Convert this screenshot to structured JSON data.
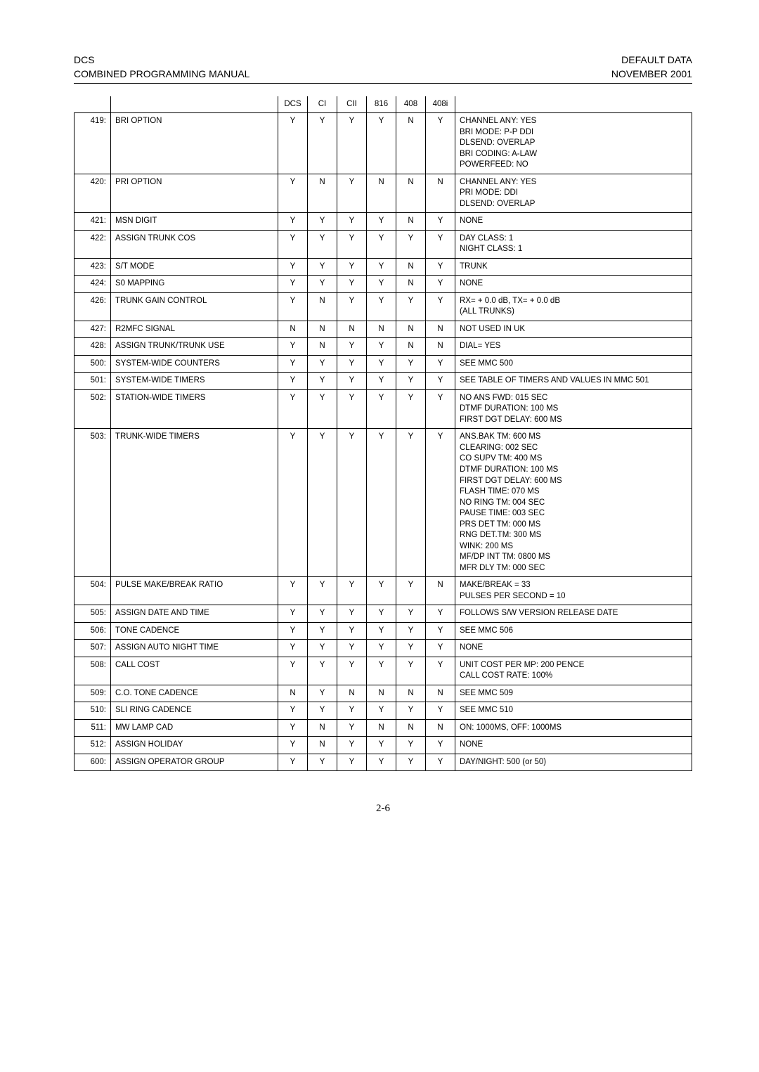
{
  "header": {
    "left_line1": "DCS",
    "left_line2": "COMBINED PROGRAMMING MANUAL",
    "right_line1": "DEFAULT DATA",
    "right_line2": "NOVEMBER 2001"
  },
  "page_number": "2-6",
  "columns": {
    "dcs": "DCS",
    "ci": "CI",
    "cii": "CII",
    "c816": "816",
    "c408": "408",
    "c408i": "408i"
  },
  "rows": [
    {
      "id": "419:",
      "name": "BRI OPTION",
      "dcs": "Y",
      "ci": "Y",
      "cii": "Y",
      "c816": "Y",
      "c408": "N",
      "c408i": "Y",
      "notes": "CHANNEL ANY: YES\nBRI MODE: P-P DDI\nDLSEND: OVERLAP\nBRI CODING: A-LAW\nPOWERFEED: NO"
    },
    {
      "id": "420:",
      "name": "PRI OPTION",
      "dcs": "Y",
      "ci": "N",
      "cii": "Y",
      "c816": "N",
      "c408": "N",
      "c408i": "N",
      "notes": "CHANNEL ANY: YES\nPRI MODE: DDI\nDLSEND: OVERLAP"
    },
    {
      "id": "421:",
      "name": "MSN DIGIT",
      "dcs": "Y",
      "ci": "Y",
      "cii": "Y",
      "c816": "Y",
      "c408": "N",
      "c408i": "Y",
      "notes": "NONE"
    },
    {
      "id": "422:",
      "name": "ASSIGN TRUNK COS",
      "dcs": "Y",
      "ci": "Y",
      "cii": "Y",
      "c816": "Y",
      "c408": "Y",
      "c408i": "Y",
      "notes": "DAY CLASS: 1\nNIGHT CLASS: 1"
    },
    {
      "id": "423:",
      "name": "S/T MODE",
      "dcs": "Y",
      "ci": "Y",
      "cii": "Y",
      "c816": "Y",
      "c408": "N",
      "c408i": "Y",
      "notes": "TRUNK"
    },
    {
      "id": "424:",
      "name": "S0 MAPPING",
      "dcs": "Y",
      "ci": "Y",
      "cii": "Y",
      "c816": "Y",
      "c408": "N",
      "c408i": "Y",
      "notes": "NONE"
    },
    {
      "id": "426:",
      "name": "TRUNK GAIN CONTROL",
      "dcs": "Y",
      "ci": "N",
      "cii": "Y",
      "c816": "Y",
      "c408": "Y",
      "c408i": "Y",
      "notes": "RX= + 0.0 dB, TX= + 0.0 dB\n(ALL TRUNKS)"
    },
    {
      "id": "427:",
      "name": "R2MFC SIGNAL",
      "dcs": "N",
      "ci": "N",
      "cii": "N",
      "c816": "N",
      "c408": "N",
      "c408i": "N",
      "notes": "NOT USED IN UK"
    },
    {
      "id": "428:",
      "name": "ASSIGN TRUNK/TRUNK USE",
      "dcs": "Y",
      "ci": "N",
      "cii": "Y",
      "c816": "Y",
      "c408": "N",
      "c408i": "N",
      "notes": "DIAL= YES"
    },
    {
      "id": "500:",
      "name": "SYSTEM-WIDE COUNTERS",
      "dcs": "Y",
      "ci": "Y",
      "cii": "Y",
      "c816": "Y",
      "c408": "Y",
      "c408i": "Y",
      "notes": "SEE MMC 500"
    },
    {
      "id": "501:",
      "name": "SYSTEM-WIDE TIMERS",
      "dcs": "Y",
      "ci": "Y",
      "cii": "Y",
      "c816": "Y",
      "c408": "Y",
      "c408i": "Y",
      "notes": "SEE TABLE OF TIMERS AND VALUES IN MMC 501"
    },
    {
      "id": "502:",
      "name": "STATION-WIDE TIMERS",
      "dcs": "Y",
      "ci": "Y",
      "cii": "Y",
      "c816": "Y",
      "c408": "Y",
      "c408i": "Y",
      "notes": "NO ANS FWD: 015 SEC\nDTMF DURATION: 100 MS\nFIRST DGT DELAY: 600 MS"
    },
    {
      "id": "503:",
      "name": "TRUNK-WIDE TIMERS",
      "dcs": "Y",
      "ci": "Y",
      "cii": "Y",
      "c816": "Y",
      "c408": "Y",
      "c408i": "Y",
      "notes": "ANS.BAK TM: 600 MS\nCLEARING: 002 SEC\nCO SUPV TM: 400 MS\nDTMF DURATION: 100 MS\nFIRST DGT DELAY: 600 MS\nFLASH TIME: 070 MS\nNO RING TM: 004 SEC\nPAUSE TIME: 003 SEC\nPRS DET TM: 000 MS\nRNG DET.TM: 300 MS\nWINK: 200 MS\nMF/DP INT TM: 0800 MS\nMFR DLY TM: 000 SEC"
    },
    {
      "id": "504:",
      "name": "PULSE MAKE/BREAK RATIO",
      "dcs": "Y",
      "ci": "Y",
      "cii": "Y",
      "c816": "Y",
      "c408": "Y",
      "c408i": "N",
      "notes": "MAKE/BREAK =  33\nPULSES PER SECOND =  10"
    },
    {
      "id": "505:",
      "name": "ASSIGN DATE AND TIME",
      "dcs": "Y",
      "ci": "Y",
      "cii": "Y",
      "c816": "Y",
      "c408": "Y",
      "c408i": "Y",
      "notes": "FOLLOWS S/W VERSION RELEASE DATE"
    },
    {
      "id": "506:",
      "name": "TONE CADENCE",
      "dcs": "Y",
      "ci": "Y",
      "cii": "Y",
      "c816": "Y",
      "c408": "Y",
      "c408i": "Y",
      "notes": "SEE MMC 506"
    },
    {
      "id": "507:",
      "name": "ASSIGN AUTO NIGHT TIME",
      "dcs": "Y",
      "ci": "Y",
      "cii": "Y",
      "c816": "Y",
      "c408": "Y",
      "c408i": "Y",
      "notes": "NONE"
    },
    {
      "id": "508:",
      "name": "CALL COST",
      "dcs": "Y",
      "ci": "Y",
      "cii": "Y",
      "c816": "Y",
      "c408": "Y",
      "c408i": "Y",
      "notes": "UNIT COST PER MP: 200 PENCE\nCALL COST RATE: 100%"
    },
    {
      "id": "509:",
      "name": "C.O. TONE CADENCE",
      "dcs": "N",
      "ci": "Y",
      "cii": "N",
      "c816": "N",
      "c408": "N",
      "c408i": "N",
      "notes": "SEE MMC 509"
    },
    {
      "id": "510:",
      "name": "SLI RING  CADENCE",
      "dcs": "Y",
      "ci": "Y",
      "cii": "Y",
      "c816": "Y",
      "c408": "Y",
      "c408i": "Y",
      "notes": "SEE MMC 510"
    },
    {
      "id": "511:",
      "name": "MW LAMP CAD",
      "dcs": "Y",
      "ci": "N",
      "cii": "Y",
      "c816": "N",
      "c408": "N",
      "c408i": "N",
      "notes": "ON: 1000MS, OFF: 1000MS"
    },
    {
      "id": "512:",
      "name": "ASSIGN HOLIDAY",
      "dcs": "Y",
      "ci": "N",
      "cii": "Y",
      "c816": "Y",
      "c408": "Y",
      "c408i": "Y",
      "notes": "NONE"
    },
    {
      "id": "600:",
      "name": "ASSIGN OPERATOR GROUP",
      "dcs": "Y",
      "ci": "Y",
      "cii": "Y",
      "c816": "Y",
      "c408": "Y",
      "c408i": "Y",
      "notes": "DAY/NIGHT: 500 (or 50)"
    }
  ]
}
